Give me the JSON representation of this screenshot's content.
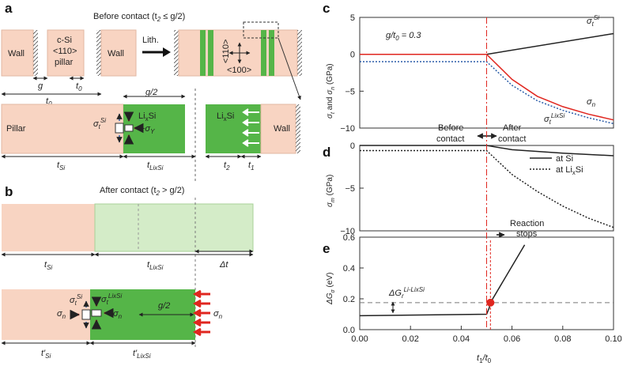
{
  "colors": {
    "pink": "#f8d4c2",
    "green": "#55b548",
    "lightgreen": "#d4ecc8",
    "red": "#e0261f",
    "blue": "#2e5fb0"
  },
  "panels": {
    "a": "a",
    "b": "b",
    "c": "c",
    "d": "d",
    "e": "e"
  },
  "a": {
    "title": "Before contact (t",
    "title_sub": "2",
    "title_tail": " ≤ g/2)",
    "wall": "Wall",
    "pillar_l1": "c-Si",
    "pillar_l2": "<110>",
    "pillar_l3": "pillar",
    "g": "g",
    "t0": "t",
    "t0_sub": "0",
    "lith": "Lith.",
    "dir110": "<110>",
    "dir100": "<100>",
    "pillar": "Pillar",
    "lixsi": "Li",
    "lixsi_sub": "x",
    "lixsi_tail": "Si",
    "g2": "g/2",
    "t_si": "t",
    "t_si_sub": "Si",
    "t_lixsi": "t",
    "t_lixsi_sub": "LixSi",
    "t2": "t",
    "t2_sub": "2",
    "t1": "t",
    "t1_sub": "1",
    "sigma_t_si": "σ",
    "sigma_t_si_sub": "t",
    "sigma_t_si_sup": "Si",
    "sigma_y": "−σ",
    "sigma_y_sub": "Y"
  },
  "b": {
    "title": "After contact (t",
    "title_sub": "2",
    "title_tail": " > g/2)",
    "t_si": "t",
    "t_si_sub": "Si",
    "t_lixsi": "t",
    "t_lixsi_sub": "LixSi",
    "dt": "Δt",
    "tp_si": "t'",
    "tp_si_sub": "Si",
    "tp_lixsi": "t'",
    "tp_lixsi_sub": "LixSi",
    "g2": "g/2",
    "sigma_n": "σ",
    "sigma_n_sub": "n",
    "sigma_t_si": "σ",
    "sigma_t_si_sub": "t",
    "sigma_t_si_sup": "Si",
    "sigma_t_lixsi_sub": "t",
    "sigma_t_lixsi_sup": "LixSi"
  },
  "chart_data": [
    {
      "type": "line",
      "panel": "c",
      "annotation": "g/t",
      "annotation_sub": "0",
      "annotation_tail": " = 0.3",
      "ylabel": "σt and σn (GPa)",
      "ylim": [
        -10,
        5
      ],
      "yticks": [
        -10,
        -5,
        0,
        5
      ],
      "ytick_labels": [
        "−10",
        "−5",
        "0",
        "5"
      ],
      "xlim": [
        0,
        0.1
      ],
      "series": [
        {
          "name": "σt Si",
          "label": "σ",
          "label_sub": "t",
          "label_sup": "Si",
          "style": "solid",
          "color": "#222222",
          "x": [
            0,
            0.05,
            0.1
          ],
          "y": [
            0,
            0,
            2.8
          ]
        },
        {
          "name": "σn",
          "label": "σ",
          "label_sub": "n",
          "style": "solid",
          "color": "#e0261f",
          "x": [
            0,
            0.05,
            0.06,
            0.07,
            0.08,
            0.09,
            0.1
          ],
          "y": [
            0,
            0,
            -3.4,
            -5.7,
            -7.1,
            -8.1,
            -8.9
          ]
        },
        {
          "name": "σt LixSi",
          "label": "σ",
          "label_sub": "t",
          "label_sup": "LixSi",
          "style": "dotted",
          "color": "#2a5ca8",
          "x": [
            0,
            0.05,
            0.06,
            0.07,
            0.08,
            0.09,
            0.1
          ],
          "y": [
            -1,
            -1,
            -4.2,
            -6.3,
            -7.6,
            -8.6,
            -9.4
          ]
        }
      ],
      "annotations": {
        "before": "Before",
        "contact": "contact",
        "after": "After",
        "contact2": "contact"
      }
    },
    {
      "type": "line",
      "panel": "d",
      "ylabel": "σm (GPa)",
      "ylim": [
        -10,
        0
      ],
      "yticks": [
        -10,
        -5,
        0
      ],
      "ytick_labels": [
        "−10",
        "−5",
        "0"
      ],
      "xlim": [
        0,
        0.1
      ],
      "legend": [
        {
          "label": "at Si",
          "style": "solid"
        },
        {
          "label": "at Li",
          "sub": "x",
          "tail": "Si",
          "style": "dotted"
        }
      ],
      "series": [
        {
          "name": "at Si",
          "style": "solid",
          "color": "#222222",
          "x": [
            0,
            0.05,
            0.06,
            0.08,
            0.1
          ],
          "y": [
            0,
            0,
            -0.5,
            -0.9,
            -1.2
          ]
        },
        {
          "name": "at LixSi",
          "style": "dotted",
          "color": "#222222",
          "x": [
            0,
            0.05,
            0.06,
            0.07,
            0.08,
            0.09,
            0.1
          ],
          "y": [
            -0.6,
            -0.6,
            -3.4,
            -5.4,
            -7.1,
            -8.5,
            -9.6
          ]
        }
      ]
    },
    {
      "type": "line",
      "panel": "e",
      "ylabel": "ΔGσ (eV)",
      "xlabel": "t1/t0",
      "ylim": [
        0,
        0.6
      ],
      "yticks": [
        0,
        0.2,
        0.4,
        0.6
      ],
      "ytick_labels": [
        "0.0",
        "0.2",
        "0.4",
        "0.6"
      ],
      "xlim": [
        0,
        0.1
      ],
      "xticks": [
        0,
        0.02,
        0.04,
        0.06,
        0.08,
        0.1
      ],
      "xtick_labels": [
        "0.00",
        "0.02",
        "0.04",
        "0.06",
        "0.08",
        "0.10"
      ],
      "threshold": 0.175,
      "threshold_label": "ΔG",
      "threshold_sub": "r",
      "threshold_sup": "Li-LixSi",
      "point": {
        "x": 0.0515,
        "y": 0.175
      },
      "reaction_l1": "Reaction",
      "reaction_l2": "stops",
      "series": [
        {
          "name": "ΔGσ",
          "style": "solid",
          "color": "#222222",
          "x": [
            0,
            0.05,
            0.051,
            0.0515,
            0.065
          ],
          "y": [
            0.09,
            0.1,
            0.14,
            0.175,
            0.55
          ]
        }
      ]
    }
  ],
  "contact_x": 0.05
}
